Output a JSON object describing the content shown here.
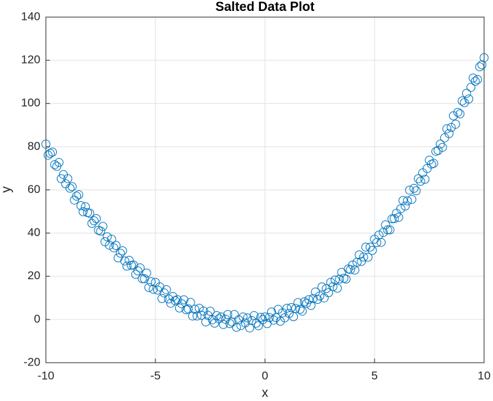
{
  "chart_data": {
    "type": "scatter",
    "title": "Salted Data Plot",
    "x_label": "x",
    "y_label": "y",
    "xlim": [
      -10,
      10
    ],
    "ylim": [
      -20,
      140
    ],
    "xticks": [
      -10,
      -5,
      0,
      5,
      10
    ],
    "yticks": [
      -20,
      0,
      20,
      40,
      60,
      80,
      100,
      120,
      140
    ],
    "grid": true,
    "color": "#0072bd",
    "x": [
      -10,
      -9.9,
      -9.8,
      -9.7,
      -9.6,
      -9.5,
      -9.4,
      -9.3,
      -9.2,
      -9.1,
      -9,
      -8.9,
      -8.8,
      -8.7,
      -8.6,
      -8.5,
      -8.4,
      -8.3,
      -8.2,
      -8.1,
      -8,
      -7.9,
      -7.8,
      -7.7,
      -7.6,
      -7.5,
      -7.4,
      -7.3,
      -7.2,
      -7.1,
      -7,
      -6.9,
      -6.8,
      -6.7,
      -6.6,
      -6.5,
      -6.4,
      -6.3,
      -6.2,
      -6.1,
      -6,
      -5.9,
      -5.8,
      -5.7,
      -5.6,
      -5.5,
      -5.4,
      -5.3,
      -5.2,
      -5.1,
      -5,
      -4.9,
      -4.8,
      -4.7,
      -4.6,
      -4.5,
      -4.4,
      -4.3,
      -4.2,
      -4.1,
      -4,
      -3.9,
      -3.8,
      -3.7,
      -3.6,
      -3.5,
      -3.4,
      -3.3,
      -3.2,
      -3.1,
      -3,
      -2.9,
      -2.8,
      -2.7,
      -2.6,
      -2.5,
      -2.4,
      -2.3,
      -2.2,
      -2.1,
      -2,
      -1.9,
      -1.8,
      -1.7,
      -1.6,
      -1.5,
      -1.4,
      -1.3,
      -1.2,
      -1.1,
      -1,
      -0.9,
      -0.8,
      -0.7,
      -0.6,
      -0.5,
      -0.4,
      -0.3,
      -0.2,
      -0.1,
      0,
      0.1,
      0.2,
      0.3,
      0.4,
      0.5,
      0.6,
      0.7,
      0.8,
      0.9,
      1,
      1.1,
      1.2,
      1.3,
      1.4,
      1.5,
      1.6,
      1.7,
      1.8,
      1.9,
      2,
      2.1,
      2.2,
      2.3,
      2.4,
      2.5,
      2.6,
      2.7,
      2.8,
      2.9,
      3,
      3.1,
      3.2,
      3.3,
      3.4,
      3.5,
      3.6,
      3.7,
      3.8,
      3.9,
      4,
      4.1,
      4.2,
      4.3,
      4.4,
      4.5,
      4.6,
      4.7,
      4.8,
      4.9,
      5,
      5.1,
      5.2,
      5.3,
      5.4,
      5.5,
      5.6,
      5.7,
      5.8,
      5.9,
      6,
      6.1,
      6.2,
      6.3,
      6.4,
      6.5,
      6.6,
      6.7,
      6.8,
      6.9,
      7,
      7.1,
      7.2,
      7.3,
      7.4,
      7.5,
      7.6,
      7.7,
      7.8,
      7.9,
      8,
      8.1,
      8.2,
      8.3,
      8.4,
      8.5,
      8.6,
      8.7,
      8.8,
      8.9,
      9,
      9.1,
      9.2,
      9.3,
      9.4,
      9.5,
      9.6,
      9.7,
      9.8,
      9.9,
      10
    ],
    "values": [
      81.2,
      76.1,
      76.9,
      77.5,
      71.7,
      70.9,
      72.7,
      65.2,
      67.1,
      62.8,
      65.2,
      60.8,
      61.5,
      55.3,
      57.1,
      57.8,
      52.7,
      49.9,
      52.2,
      49.5,
      49.2,
      44.5,
      45.7,
      46.7,
      41.3,
      40.9,
      43.1,
      36.0,
      38.3,
      34.4,
      37.2,
      33.2,
      34.3,
      28.5,
      30.7,
      31.8,
      27.1,
      24.7,
      27.4,
      25.1,
      25.2,
      20.9,
      22.5,
      23.9,
      18.9,
      18.9,
      21.5,
      14.8,
      17.5,
      14.0,
      17.2,
      13.6,
      15.1,
      9.7,
      12.3,
      13.8,
      9.5,
      7.5,
      10.6,
      8.7,
      9.2,
      5.3,
      7.3,
      9.1,
      4.5,
      4.9,
      7.9,
      1.6,
      4.7,
      1.6,
      5.2,
      2.0,
      3.9,
      -1.1,
      1.9,
      3.8,
      -0.1,
      -1.7,
      1.8,
      0.3,
      1.2,
      -2.3,
      0.1,
      2.3,
      -1.9,
      -1.2,
      2.3,
      -3.6,
      -0.1,
      -2.8,
      1.2,
      -1.6,
      0.7,
      -3.9,
      -0.5,
      1.8,
      -1.7,
      -2.9,
      1.0,
      -0.1,
      1.2,
      -1.9,
      0.9,
      3.5,
      -0.3,
      0.9,
      4.7,
      -0.8,
      3.1,
      0.8,
      5.2,
      2.8,
      5.5,
      1.3,
      5.1,
      7.8,
      4.7,
      3.9,
      8.2,
      7.5,
      9.2,
      6.5,
      9.7,
      12.7,
      9.3,
      10.9,
      15.1,
      10.0,
      14.3,
      12.4,
      17.2,
      15.2,
      18.3,
      14.5,
      18.7,
      21.8,
      19.1,
      18.7,
      23.4,
      23.1,
      25.2,
      22.9,
      26.5,
      29.9,
      26.9,
      28.9,
      33.5,
      28.8,
      33.5,
      32.0,
      37.2,
      35.6,
      39.1,
      35.7,
      40.3,
      43.8,
      41.5,
      41.5,
      46.6,
      46.7,
      49.2,
      47.3,
      51.3,
      55.1,
      52.5,
      54.9,
      59.9,
      55.6,
      60.7,
      59.6,
      65.2,
      64.0,
      67.9,
      64.9,
      69.9,
      73.8,
      71.9,
      72.3,
      77.8,
      78.3,
      81.2,
      79.7,
      84.1,
      88.3,
      86.1,
      88.9,
      94.3,
      90.4,
      95.9,
      95.2,
      101.2,
      100.4,
      104.7,
      102.1,
      107.5,
      111.8,
      110.3,
      111.1,
      117.0,
      117.9,
      121.2
    ]
  }
}
